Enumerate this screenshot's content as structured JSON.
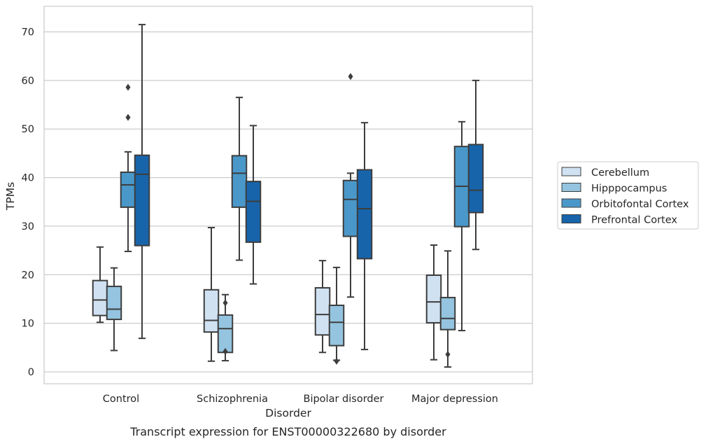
{
  "chart_data": {
    "type": "box",
    "categories": [
      "Control",
      "Schizophrenia",
      "Bipolar disorder",
      "Major depression"
    ],
    "xlabel": "Disorder",
    "ylabel": "TPMs",
    "caption": "Transcript expression for ENST00000322680 by disorder",
    "ylim": [
      -2.5,
      75
    ],
    "yticks": [
      0,
      10,
      20,
      30,
      40,
      50,
      60,
      70
    ],
    "grid": "horizontal",
    "legend_position": "right",
    "series": [
      {
        "name": "Cerebellum",
        "color": "#d0e1f2",
        "boxes": [
          {
            "whisker_low": 10.2,
            "q1": 11.6,
            "median": 14.8,
            "q3": 18.8,
            "whisker_high": 25.7,
            "outliers": []
          },
          {
            "whisker_low": 2.2,
            "q1": 8.2,
            "median": 10.6,
            "q3": 16.9,
            "whisker_high": 29.7,
            "outliers": []
          },
          {
            "whisker_low": 4.0,
            "q1": 7.6,
            "median": 11.8,
            "q3": 17.3,
            "whisker_high": 22.9,
            "outliers": []
          },
          {
            "whisker_low": 2.5,
            "q1": 10.1,
            "median": 14.4,
            "q3": 19.9,
            "whisker_high": 26.1,
            "outliers": []
          }
        ]
      },
      {
        "name": "Hipppocampus",
        "color": "#94c4df",
        "boxes": [
          {
            "whisker_low": 4.4,
            "q1": 10.8,
            "median": 12.9,
            "q3": 17.6,
            "whisker_high": 21.4,
            "outliers": []
          },
          {
            "whisker_low": 2.3,
            "q1": 4.0,
            "median": 8.9,
            "q3": 11.7,
            "whisker_high": 15.9,
            "outliers": [
              14.2,
              4.2
            ]
          },
          {
            "whisker_low": 2.4,
            "q1": 5.4,
            "median": 10.2,
            "q3": 13.7,
            "whisker_high": 21.5,
            "outliers": [
              2.2
            ]
          },
          {
            "whisker_low": 1.0,
            "q1": 8.7,
            "median": 11.0,
            "q3": 15.3,
            "whisker_high": 24.9,
            "outliers": [
              3.6
            ]
          }
        ]
      },
      {
        "name": "Orbitofontal Cortex",
        "color": "#4a98c9",
        "boxes": [
          {
            "whisker_low": 24.8,
            "q1": 33.9,
            "median": 38.5,
            "q3": 41.1,
            "whisker_high": 45.3,
            "outliers": [
              58.6,
              52.4
            ]
          },
          {
            "whisker_low": 23.0,
            "q1": 33.9,
            "median": 40.9,
            "q3": 44.5,
            "whisker_high": 56.5,
            "outliers": []
          },
          {
            "whisker_low": 15.4,
            "q1": 27.9,
            "median": 35.5,
            "q3": 39.4,
            "whisker_high": 40.9,
            "outliers": [
              60.8
            ]
          },
          {
            "whisker_low": 8.5,
            "q1": 29.9,
            "median": 38.2,
            "q3": 46.4,
            "whisker_high": 51.5,
            "outliers": []
          }
        ]
      },
      {
        "name": "Prefrontal Cortex",
        "color": "#1764ab",
        "boxes": [
          {
            "whisker_low": 6.9,
            "q1": 26.0,
            "median": 40.7,
            "q3": 44.6,
            "whisker_high": 71.5,
            "outliers": []
          },
          {
            "whisker_low": 18.1,
            "q1": 26.7,
            "median": 35.1,
            "q3": 39.2,
            "whisker_high": 50.7,
            "outliers": []
          },
          {
            "whisker_low": 4.6,
            "q1": 23.3,
            "median": 33.6,
            "q3": 41.6,
            "whisker_high": 51.3,
            "outliers": []
          },
          {
            "whisker_low": 25.2,
            "q1": 32.8,
            "median": 37.4,
            "q3": 46.8,
            "whisker_high": 60.0,
            "outliers": []
          }
        ]
      }
    ]
  }
}
